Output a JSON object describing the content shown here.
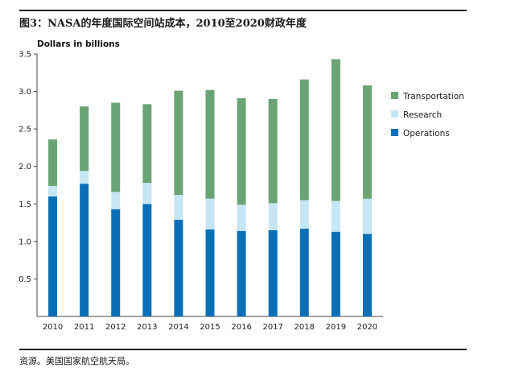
{
  "figure": {
    "title": "图3：NASA的年度国际空间站成本，2010至2020财政年度",
    "source": "资源。美国国家航空航天局。"
  },
  "chart_data": {
    "type": "bar",
    "stacked": true,
    "title": "图3：NASA的年度国际空间站成本，2010至2020财政年度",
    "ylabel": "Dollars in billions",
    "xlabel": "",
    "ylim": [
      0,
      3.5
    ],
    "yticks": [
      "0.5",
      "1.0",
      "1.5",
      "2.0",
      "2.5",
      "3.0",
      "3.5"
    ],
    "grid": false,
    "legend_position": "right",
    "categories": [
      "2010",
      "2011",
      "2012",
      "2013",
      "2014",
      "2015",
      "2016",
      "2017",
      "2018",
      "2019",
      "2020"
    ],
    "series": [
      {
        "name": "Operations",
        "color": "#0b6fb8",
        "values": [
          1.6,
          1.77,
          1.43,
          1.5,
          1.29,
          1.16,
          1.14,
          1.15,
          1.17,
          1.13,
          1.1
        ]
      },
      {
        "name": "Research",
        "color": "#c6e6f5",
        "values": [
          0.14,
          0.17,
          0.23,
          0.28,
          0.33,
          0.41,
          0.35,
          0.36,
          0.38,
          0.41,
          0.47
        ]
      },
      {
        "name": "Transportation",
        "color": "#6aa474",
        "values": [
          0.62,
          0.86,
          1.19,
          1.05,
          1.39,
          1.45,
          1.42,
          1.39,
          1.61,
          1.89,
          1.51
        ]
      }
    ],
    "legend": [
      "Transportation",
      "Research",
      "Operations"
    ]
  }
}
